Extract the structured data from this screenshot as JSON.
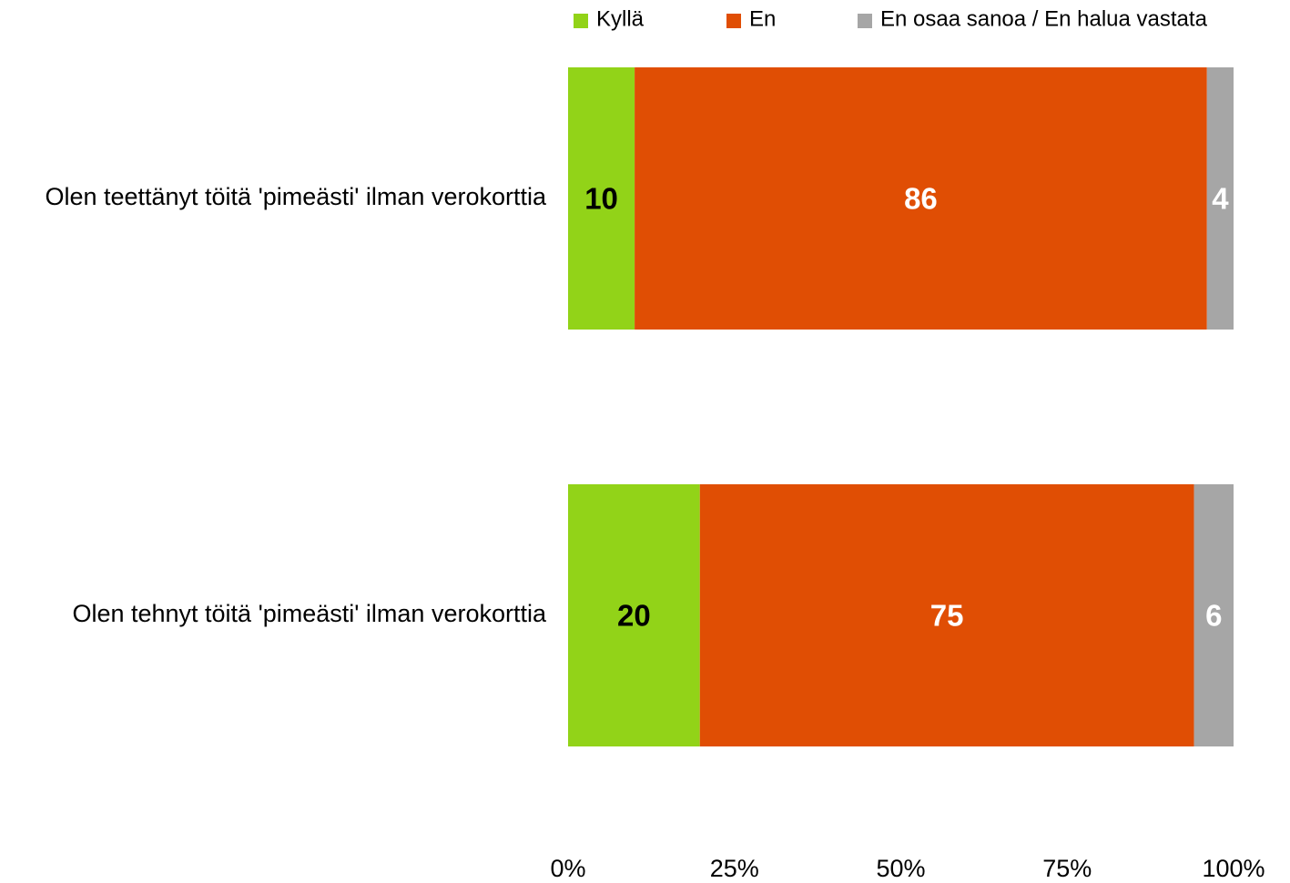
{
  "chart_data": {
    "type": "bar",
    "orientation": "horizontal",
    "stacked": "percent",
    "categories": [
      "Olen teettänyt töitä 'pimeästi' ilman verokorttia",
      "Olen tehnyt töitä 'pimeästi' ilman verokorttia"
    ],
    "series": [
      {
        "name": "Kyllä",
        "values": [
          10,
          20
        ],
        "color": "#92d318",
        "label_color": "#000000"
      },
      {
        "name": "En",
        "values": [
          86,
          75
        ],
        "color": "#e04e04",
        "label_color": "#ffffff"
      },
      {
        "name": "En osaa sanoa / En halua vastata",
        "values": [
          4,
          6
        ],
        "color": "#a6a6a6",
        "label_color": "#ffffff"
      }
    ],
    "x_ticks": [
      "0%",
      "25%",
      "50%",
      "75%",
      "100%"
    ],
    "xlim": [
      0,
      100
    ],
    "grid": false,
    "legend_position": "top",
    "data_labels": true
  }
}
